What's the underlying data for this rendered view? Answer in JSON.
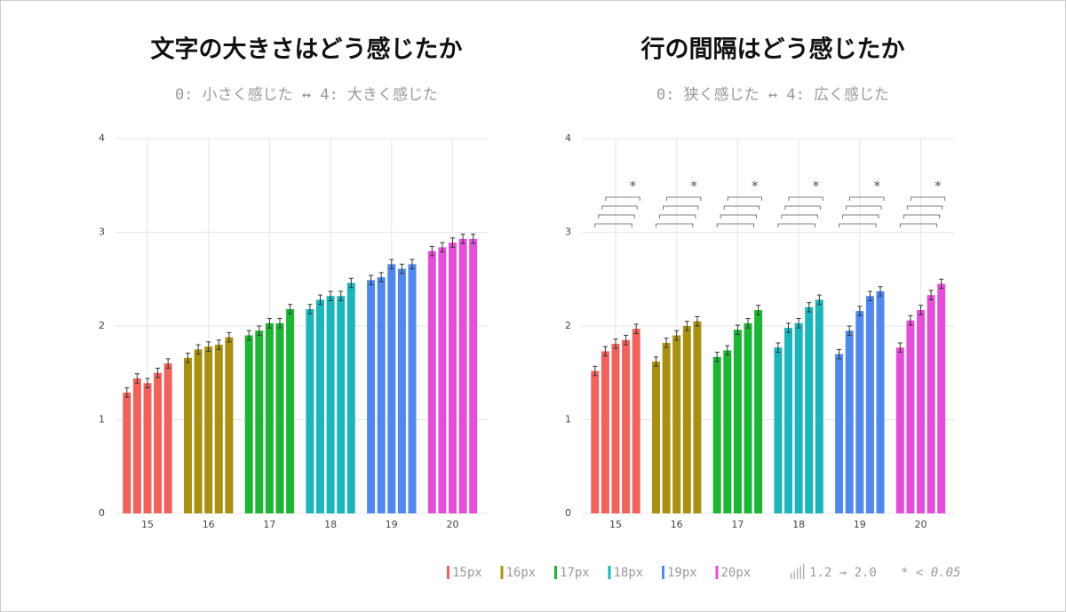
{
  "chart_data": [
    {
      "type": "bar",
      "title": "文字の大きさはどう感じたか",
      "subtitle": "0: 小さく感じた ↔ 4: 大きく感じた",
      "categories": [
        "15",
        "16",
        "17",
        "18",
        "19",
        "20"
      ],
      "colors": [
        "#f0625c",
        "#a89112",
        "#1fb534",
        "#1cb5b9",
        "#5088ec",
        "#e34fd8"
      ],
      "values": [
        [
          1.29,
          1.44,
          1.39,
          1.5,
          1.6
        ],
        [
          1.66,
          1.75,
          1.78,
          1.8,
          1.88
        ],
        [
          1.9,
          1.95,
          2.03,
          2.03,
          2.18
        ],
        [
          2.18,
          2.28,
          2.32,
          2.32,
          2.46
        ],
        [
          2.49,
          2.52,
          2.66,
          2.61,
          2.66
        ],
        [
          2.8,
          2.84,
          2.89,
          2.93,
          2.93
        ]
      ],
      "errors": [
        [
          0.05,
          0.05,
          0.05,
          0.05,
          0.05
        ],
        [
          0.05,
          0.05,
          0.05,
          0.05,
          0.05
        ],
        [
          0.05,
          0.05,
          0.05,
          0.05,
          0.05
        ],
        [
          0.05,
          0.05,
          0.05,
          0.05,
          0.05
        ],
        [
          0.05,
          0.05,
          0.05,
          0.05,
          0.05
        ],
        [
          0.05,
          0.05,
          0.05,
          0.05,
          0.05
        ]
      ],
      "ylim": [
        0,
        4
      ],
      "yticks": [
        0,
        1,
        2,
        3,
        4
      ],
      "grid": true
    },
    {
      "type": "bar",
      "title": "行の間隔はどう感じたか",
      "subtitle": "0: 狭く感じた ↔ 4: 広く感じた",
      "categories": [
        "15",
        "16",
        "17",
        "18",
        "19",
        "20"
      ],
      "colors": [
        "#f0625c",
        "#a89112",
        "#1fb534",
        "#1cb5b9",
        "#5088ec",
        "#e34fd8"
      ],
      "values": [
        [
          1.52,
          1.73,
          1.81,
          1.85,
          1.97
        ],
        [
          1.62,
          1.82,
          1.9,
          2.0,
          2.05
        ],
        [
          1.67,
          1.74,
          1.96,
          2.03,
          2.17
        ],
        [
          1.77,
          1.98,
          2.03,
          2.2,
          2.28
        ],
        [
          1.7,
          1.95,
          2.16,
          2.32,
          2.37
        ],
        [
          1.77,
          2.06,
          2.17,
          2.33,
          2.45
        ]
      ],
      "errors": [
        [
          0.05,
          0.05,
          0.05,
          0.05,
          0.05
        ],
        [
          0.05,
          0.05,
          0.05,
          0.05,
          0.05
        ],
        [
          0.05,
          0.05,
          0.05,
          0.05,
          0.05
        ],
        [
          0.05,
          0.05,
          0.05,
          0.05,
          0.05
        ],
        [
          0.05,
          0.05,
          0.05,
          0.05,
          0.05
        ],
        [
          0.05,
          0.05,
          0.05,
          0.05,
          0.05
        ]
      ],
      "ylim": [
        0,
        4
      ],
      "yticks": [
        0,
        1,
        2,
        3,
        4
      ],
      "grid": true,
      "significance_label": "*"
    }
  ],
  "legend": {
    "items": [
      "15px",
      "16px",
      "17px",
      "18px",
      "19px",
      "20px"
    ],
    "range": "1.2 → 2.0",
    "significance": "* < 0.05"
  }
}
